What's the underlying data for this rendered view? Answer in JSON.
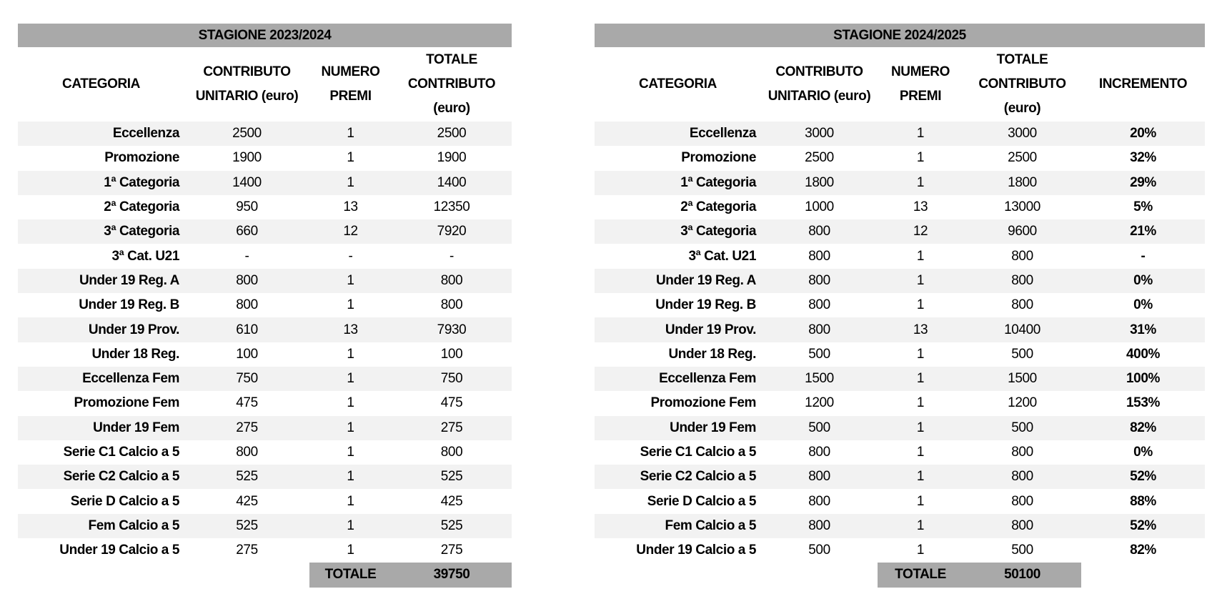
{
  "left": {
    "season": "STAGIONE 2023/2024",
    "headers": [
      "CATEGORIA",
      "CONTRIBUTO UNITARIO (euro)",
      "NUMERO PREMI",
      "TOTALE CONTRIBUTO (euro)"
    ],
    "rows": [
      [
        "Eccellenza",
        "2500",
        "1",
        "2500"
      ],
      [
        "Promozione",
        "1900",
        "1",
        "1900"
      ],
      [
        "1ª  Categoria",
        "1400",
        "1",
        "1400"
      ],
      [
        "2ª Categoria",
        "950",
        "13",
        "12350"
      ],
      [
        "3ª Categoria",
        "660",
        "12",
        "7920"
      ],
      [
        "3ª Cat. U21",
        "-",
        "-",
        "-"
      ],
      [
        "Under 19 Reg. A",
        "800",
        "1",
        "800"
      ],
      [
        "Under 19 Reg. B",
        "800",
        "1",
        "800"
      ],
      [
        "Under 19 Prov.",
        "610",
        "13",
        "7930"
      ],
      [
        "Under 18 Reg.",
        "100",
        "1",
        "100"
      ],
      [
        "Eccellenza Fem",
        "750",
        "1",
        "750"
      ],
      [
        "Promozione Fem",
        "475",
        "1",
        "475"
      ],
      [
        "Under 19 Fem",
        "275",
        "1",
        "275"
      ],
      [
        "Serie C1 Calcio a 5",
        "800",
        "1",
        "800"
      ],
      [
        "Serie C2 Calcio a 5",
        "525",
        "1",
        "525"
      ],
      [
        "Serie D Calcio a 5",
        "425",
        "1",
        "425"
      ],
      [
        "Fem Calcio a 5",
        "525",
        "1",
        "525"
      ],
      [
        "Under 19 Calcio a 5",
        "275",
        "1",
        "275"
      ]
    ],
    "total_label": "TOTALE",
    "total_value": "39750"
  },
  "right": {
    "season": "STAGIONE 2024/2025",
    "headers": [
      "CATEGORIA",
      "CONTRIBUTO UNITARIO (euro)",
      "NUMERO PREMI",
      "TOTALE CONTRIBUTO (euro)",
      "INCREMENTO"
    ],
    "rows": [
      [
        "Eccellenza",
        "3000",
        "1",
        "3000",
        "20%"
      ],
      [
        "Promozione",
        "2500",
        "1",
        "2500",
        "32%"
      ],
      [
        "1ª  Categoria",
        "1800",
        "1",
        "1800",
        "29%"
      ],
      [
        "2ª Categoria",
        "1000",
        "13",
        "13000",
        "5%"
      ],
      [
        "3ª Categoria",
        "800",
        "12",
        "9600",
        "21%"
      ],
      [
        "3ª Cat. U21",
        "800",
        "1",
        "800",
        "-"
      ],
      [
        "Under 19 Reg. A",
        "800",
        "1",
        "800",
        "0%"
      ],
      [
        "Under 19 Reg. B",
        "800",
        "1",
        "800",
        "0%"
      ],
      [
        "Under 19 Prov.",
        "800",
        "13",
        "10400",
        "31%"
      ],
      [
        "Under 18 Reg.",
        "500",
        "1",
        "500",
        "400%"
      ],
      [
        "Eccellenza Fem",
        "1500",
        "1",
        "1500",
        "100%"
      ],
      [
        "Promozione Fem",
        "1200",
        "1",
        "1200",
        "153%"
      ],
      [
        "Under 19 Fem",
        "500",
        "1",
        "500",
        "82%"
      ],
      [
        "Serie C1 Calcio a 5",
        "800",
        "1",
        "800",
        "0%"
      ],
      [
        "Serie C2 Calcio a 5",
        "800",
        "1",
        "800",
        "52%"
      ],
      [
        "Serie D Calcio a 5",
        "800",
        "1",
        "800",
        "88%"
      ],
      [
        "Fem Calcio a 5",
        "800",
        "1",
        "800",
        "52%"
      ],
      [
        "Under 19 Calcio a 5",
        "500",
        "1",
        "500",
        "82%"
      ]
    ],
    "total_label": "TOTALE",
    "total_value": "50100"
  },
  "colors": {
    "header_bg": "#a9a9a9",
    "stripe_bg": "#f2f2f2"
  }
}
